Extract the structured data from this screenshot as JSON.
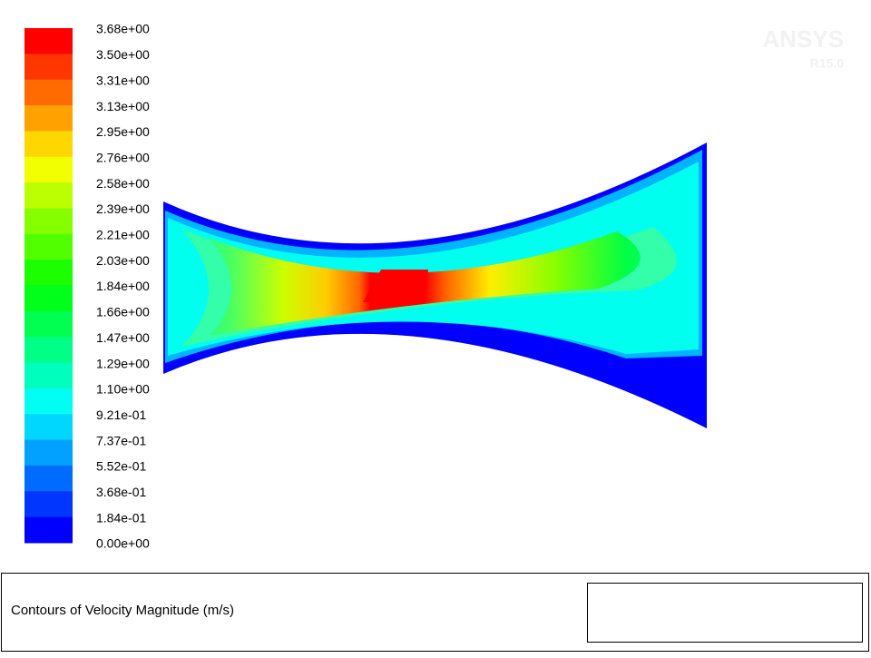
{
  "colorbar": {
    "labels": [
      "3.68e+00",
      "3.50e+00",
      "3.31e+00",
      "3.13e+00",
      "2.95e+00",
      "2.76e+00",
      "2.58e+00",
      "2.39e+00",
      "2.21e+00",
      "2.03e+00",
      "1.84e+00",
      "1.66e+00",
      "1.47e+00",
      "1.29e+00",
      "1.10e+00",
      "9.21e-01",
      "7.37e-01",
      "5.52e-01",
      "3.68e-01",
      "1.84e-01",
      "0.00e+00"
    ]
  },
  "logo": {
    "name": "ANSYS",
    "version": "R15.0"
  },
  "footer": {
    "title": "Contours of Velocity Magnitude (m/s)"
  }
}
